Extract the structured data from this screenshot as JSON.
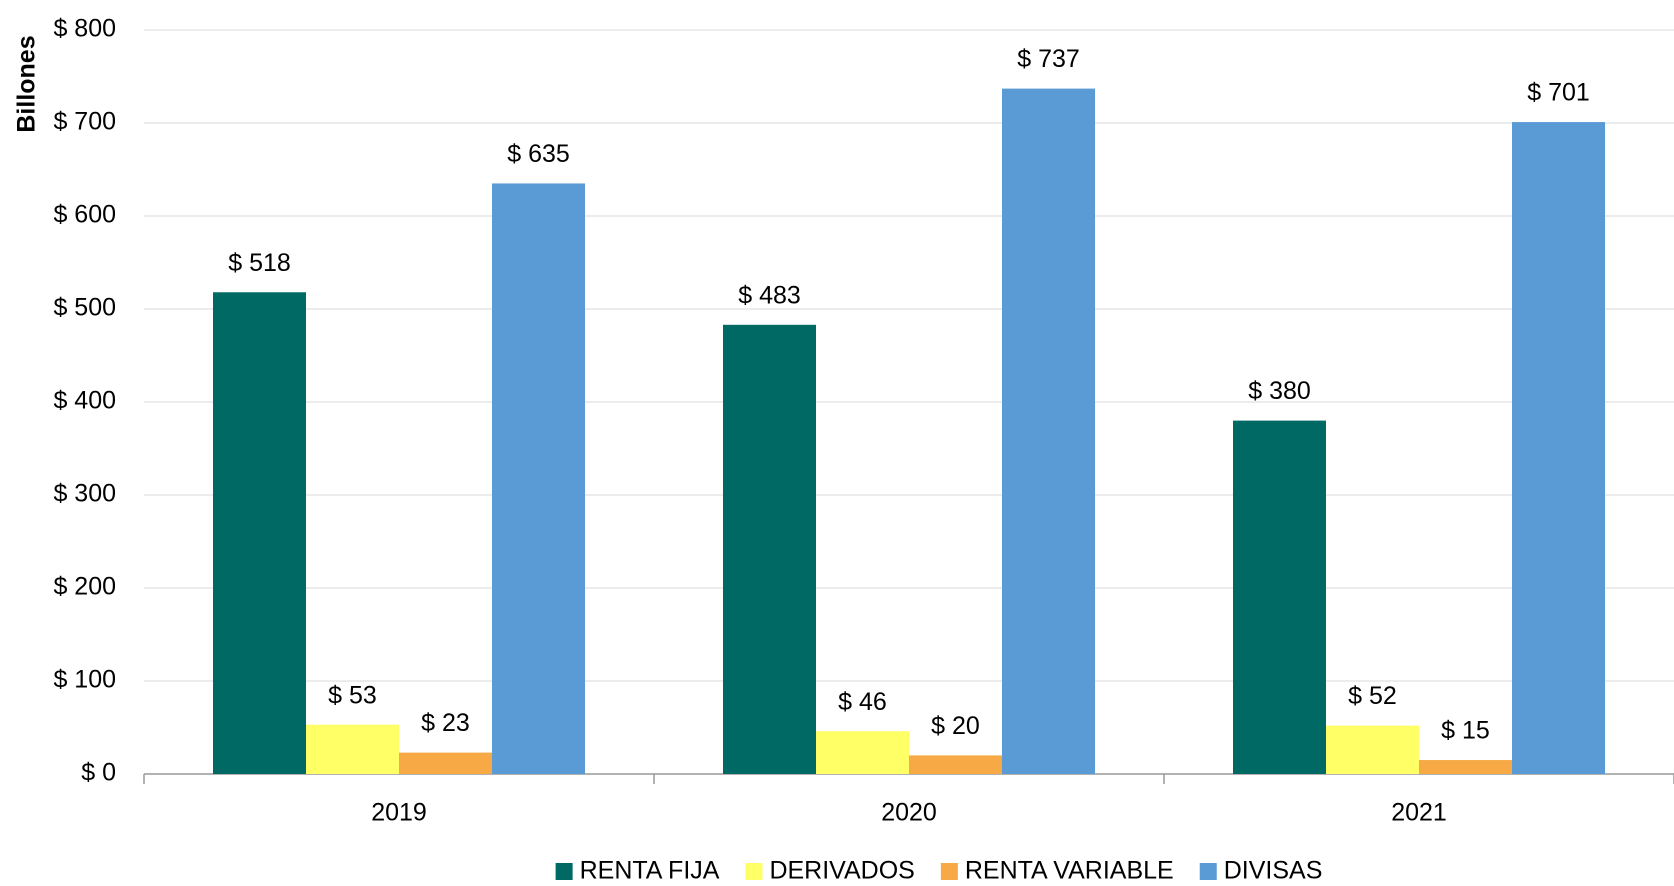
{
  "chart_data": {
    "type": "bar",
    "y_label": "Billones",
    "categories": [
      "2019",
      "2020",
      "2021"
    ],
    "series": [
      {
        "name": "RENTA FIJA",
        "color": "#006963",
        "values": [
          518,
          483,
          380
        ],
        "value_labels": [
          "$ 518",
          "$ 483",
          "$ 380"
        ]
      },
      {
        "name": "DERIVADOS",
        "color": "#ffff66",
        "values": [
          53,
          46,
          52
        ],
        "value_labels": [
          "$ 53",
          "$ 46",
          "$ 52"
        ]
      },
      {
        "name": "RENTA VARIABLE",
        "color": "#f6a945",
        "values": [
          23,
          20,
          15
        ],
        "value_labels": [
          "$ 23",
          "$ 20",
          "$ 15"
        ]
      },
      {
        "name": "DIVISAS",
        "color": "#5b9bd5",
        "values": [
          635,
          737,
          701
        ],
        "value_labels": [
          "$ 635",
          "$ 737",
          "$ 701"
        ]
      }
    ],
    "ylim": [
      0,
      800
    ],
    "yticks": [
      {
        "value": 0,
        "label": "$ 0"
      },
      {
        "value": 100,
        "label": "$ 100"
      },
      {
        "value": 200,
        "label": "$ 200"
      },
      {
        "value": 300,
        "label": "$ 300"
      },
      {
        "value": 400,
        "label": "$ 400"
      },
      {
        "value": 500,
        "label": "$ 500"
      },
      {
        "value": 600,
        "label": "$ 600"
      },
      {
        "value": 700,
        "label": "$ 700"
      },
      {
        "value": 800,
        "label": "$ 800"
      }
    ],
    "grid": true,
    "legend": "bottom"
  }
}
